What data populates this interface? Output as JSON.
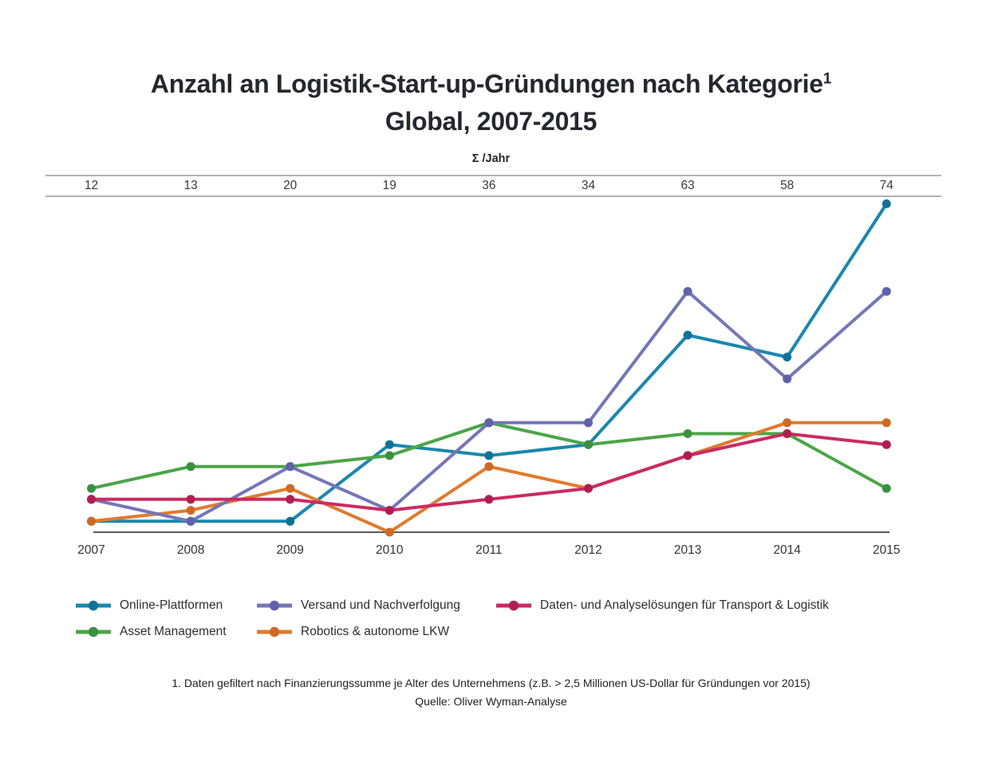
{
  "title": {
    "line1": "Anzahl an Logistik-Start-up-Gründungen nach Kategorie",
    "superscript": "1",
    "line2": "Global, 2007-2015"
  },
  "sum_row": {
    "label": "Σ /Jahr",
    "values": [
      "12",
      "13",
      "20",
      "19",
      "36",
      "34",
      "63",
      "58",
      "74"
    ]
  },
  "chart_data": {
    "type": "line",
    "title": "Anzahl an Logistik-Start-up-Gründungen nach Kategorie, Global, 2007-2015",
    "x": [
      "2007",
      "2008",
      "2009",
      "2010",
      "2011",
      "2012",
      "2013",
      "2014",
      "2015"
    ],
    "totals_per_year": [
      12,
      13,
      20,
      19,
      36,
      34,
      63,
      58,
      74
    ],
    "series": [
      {
        "name": "Online-Plattformen",
        "color": "#1a87ad",
        "dot_color": "#0e7298",
        "values": [
          1,
          1,
          1,
          8,
          7,
          8,
          18,
          16,
          30
        ]
      },
      {
        "name": "Versand und Nachverfolgung",
        "color": "#7476b9",
        "dot_color": "#5f62a9",
        "values": [
          3,
          1,
          6,
          2,
          10,
          10,
          22,
          14,
          22
        ]
      },
      {
        "name": "Daten- und Analyselösungen für Transport & Logistik",
        "color": "#cb2a62",
        "dot_color": "#b01e51",
        "values": [
          3,
          3,
          3,
          2,
          3,
          4,
          7,
          9,
          8
        ]
      },
      {
        "name": "Asset Management",
        "color": "#4ba547",
        "dot_color": "#3a913d",
        "values": [
          4,
          6,
          6,
          7,
          10,
          8,
          9,
          9,
          4
        ]
      },
      {
        "name": "Robotics & autonome LKW",
        "color": "#e17a2d",
        "dot_color": "#cf6923",
        "values": [
          1,
          2,
          4,
          0,
          6,
          4,
          7,
          10,
          10
        ]
      }
    ],
    "z_order": [
      0,
      3,
      4,
      1,
      2
    ],
    "ylim": [
      0,
      31
    ],
    "grid": false,
    "xlabel": "",
    "ylabel": "",
    "legend_position": "bottom",
    "axis_color": "#58585a"
  },
  "footer": {
    "footnote": "1. Daten gefiltert nach Finanzierungssumme je Alter des Unternehmens (z.B. > 2,5 Millionen US-Dollar für Gründungen vor 2015)",
    "source": "Quelle: Oliver Wyman-Analyse"
  }
}
